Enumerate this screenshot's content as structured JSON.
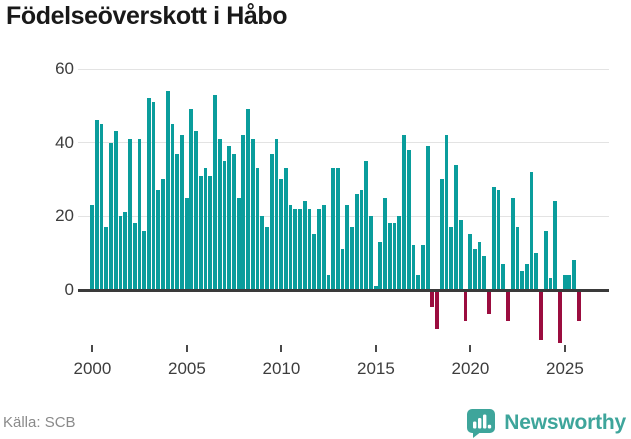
{
  "title": "Födelseöverskott i Håbo",
  "footer": {
    "source_label": "Källa: SCB",
    "brand": "Newsworthy"
  },
  "colors": {
    "positive_bar": "#0a9d9c",
    "negative_bar": "#9b0d3f",
    "gridline": "#e3e3e3",
    "axis_line": "#3a3a3a",
    "brand_teal": "#3ea59b",
    "title_text": "#191919",
    "tick_text": "#3d3d3d",
    "source_text": "#8a8a8a"
  },
  "axis": {
    "y_ticks": [
      {
        "label": "60",
        "value": 60
      },
      {
        "label": "40",
        "value": 40
      },
      {
        "label": "20",
        "value": 20
      },
      {
        "label": "0",
        "value": 0
      }
    ],
    "x_ticks": [
      {
        "label": "2000",
        "year": 2000
      },
      {
        "label": "2005",
        "year": 2005
      },
      {
        "label": "2010",
        "year": 2010
      },
      {
        "label": "2015",
        "year": 2015
      },
      {
        "label": "2020",
        "year": 2020
      },
      {
        "label": "2025",
        "year": 2025
      }
    ]
  },
  "chart_data": {
    "type": "bar",
    "title": "Födelseöverskott i Håbo",
    "source": "Källa: SCB",
    "frequency": "quarterly",
    "start": "2000-Q1",
    "end": "2025-Q4",
    "xlabel": "",
    "ylabel": "",
    "ylim": [
      -15,
      62
    ],
    "grid_values": [
      20,
      40,
      60
    ],
    "legend": "none",
    "positive_color": "#0a9d9c",
    "negative_color": "#9b0d3f",
    "series_by_year": [
      {
        "year": 2000,
        "q": [
          23,
          46,
          45,
          17
        ]
      },
      {
        "year": 2001,
        "q": [
          40,
          43,
          20,
          21
        ]
      },
      {
        "year": 2002,
        "q": [
          41,
          18,
          41,
          16
        ]
      },
      {
        "year": 2003,
        "q": [
          52,
          51,
          27,
          30
        ]
      },
      {
        "year": 2004,
        "q": [
          54,
          45,
          37,
          42
        ]
      },
      {
        "year": 2005,
        "q": [
          25,
          49,
          43,
          31
        ]
      },
      {
        "year": 2006,
        "q": [
          33,
          31,
          53,
          41
        ]
      },
      {
        "year": 2007,
        "q": [
          35,
          39,
          37,
          25
        ]
      },
      {
        "year": 2008,
        "q": [
          42,
          49,
          41,
          33
        ]
      },
      {
        "year": 2009,
        "q": [
          20,
          17,
          37,
          41
        ]
      },
      {
        "year": 2010,
        "q": [
          30,
          33,
          23,
          22
        ]
      },
      {
        "year": 2011,
        "q": [
          22,
          24,
          22,
          15
        ]
      },
      {
        "year": 2012,
        "q": [
          22,
          23,
          4,
          33
        ]
      },
      {
        "year": 2013,
        "q": [
          33,
          11,
          23,
          17
        ]
      },
      {
        "year": 2014,
        "q": [
          26,
          27,
          35,
          20
        ]
      },
      {
        "year": 2015,
        "q": [
          1,
          13,
          25,
          18
        ]
      },
      {
        "year": 2016,
        "q": [
          18,
          20,
          42,
          38
        ]
      },
      {
        "year": 2017,
        "q": [
          12,
          4,
          12,
          39
        ]
      },
      {
        "year": 2018,
        "q": [
          -4,
          -10,
          30,
          42
        ]
      },
      {
        "year": 2019,
        "q": [
          17,
          34,
          19,
          -8
        ]
      },
      {
        "year": 2020,
        "q": [
          15,
          11,
          13,
          9
        ]
      },
      {
        "year": 2021,
        "q": [
          -6,
          28,
          27,
          7
        ]
      },
      {
        "year": 2022,
        "q": [
          -8,
          25,
          17,
          5
        ]
      },
      {
        "year": 2023,
        "q": [
          7,
          32,
          10,
          -13
        ]
      },
      {
        "year": 2024,
        "q": [
          16,
          3,
          24,
          -14
        ]
      },
      {
        "year": 2025,
        "q": [
          4,
          4,
          8,
          -8
        ]
      }
    ]
  }
}
